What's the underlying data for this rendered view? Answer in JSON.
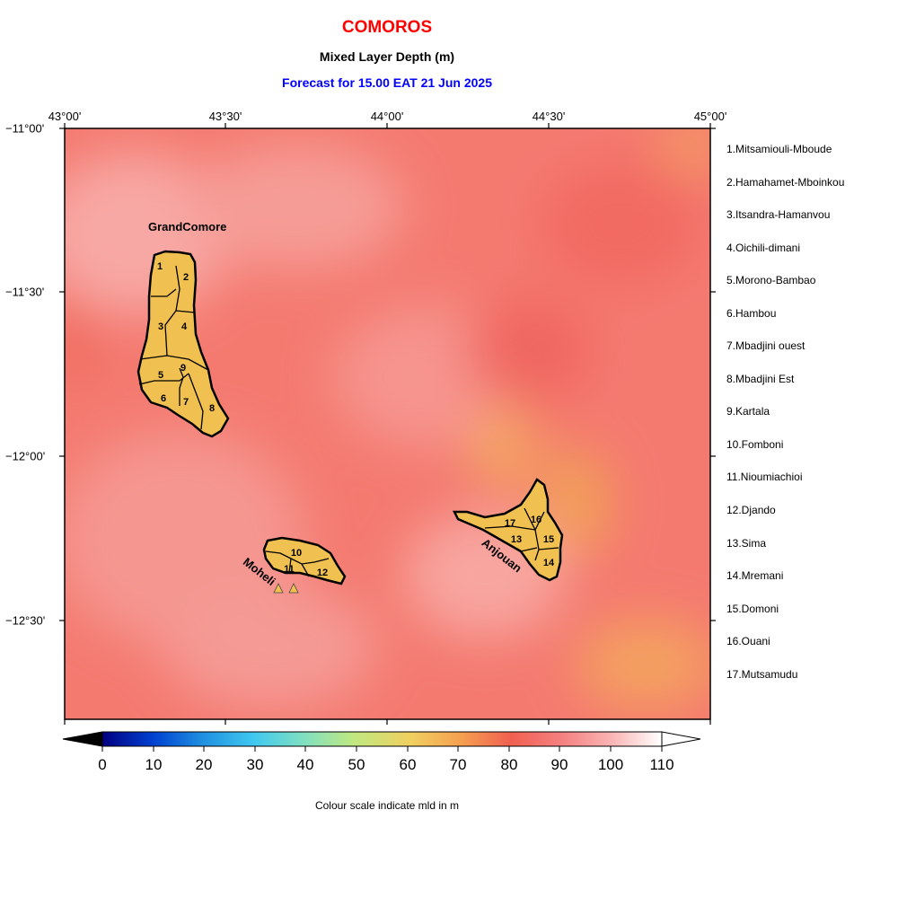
{
  "header": {
    "country": "COMOROS",
    "variable": "Mixed Layer Depth (m)",
    "forecast": "Forecast for  15.00 EAT 21 Jun 2025"
  },
  "axes": {
    "lon_labels": [
      "43°00'",
      "43°30'",
      "44°00'",
      "44°30'",
      "45°00'"
    ],
    "lat_labels": [
      "−11°00'",
      "−11°30'",
      "−12°00'",
      "−12°30'"
    ]
  },
  "islands": {
    "grand_comore": "GrandComore",
    "moheli": "Moheli",
    "anjouan": "Anjouan"
  },
  "region_numbers": [
    "1",
    "2",
    "3",
    "4",
    "5",
    "6",
    "7",
    "8",
    "9",
    "10",
    "11",
    "12",
    "13",
    "14",
    "15",
    "16",
    "17"
  ],
  "legend": [
    "1.Mitsamiouli-Mboude",
    "2.Hamahamet-Mboinkou",
    "3.Itsandra-Hamanvou",
    "4.Oichili-dimani",
    "5.Morono-Bambao",
    "6.Hambou",
    "7.Mbadjini ouest",
    "8.Mbadjini Est",
    "9.Kartala",
    "10.Fomboni",
    "11.Nioumiachioi",
    "12.Djando",
    "13.Sima",
    "14.Mremani",
    "15.Domoni",
    "16.Ouani",
    "17.Mutsamudu"
  ],
  "colorbar": {
    "ticks": [
      "0",
      "10",
      "20",
      "30",
      "40",
      "50",
      "60",
      "70",
      "80",
      "90",
      "100",
      "110"
    ],
    "caption": "Colour scale indicate mld in m",
    "colors": [
      "#000080",
      "#0040d0",
      "#2090e0",
      "#40c8f0",
      "#80e0c0",
      "#c0e880",
      "#f0d060",
      "#f5a050",
      "#f06050",
      "#f58080",
      "#fab4b4",
      "#ffffff"
    ]
  },
  "colors": {
    "sea_base": "#f47a70",
    "land": "#f0c050",
    "title_red": "#ff0000",
    "forecast_blue": "#0000ff"
  }
}
